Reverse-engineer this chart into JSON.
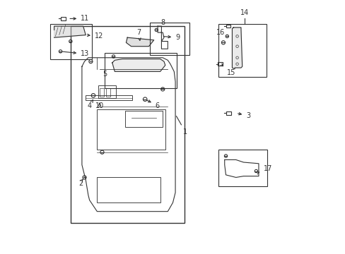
{
  "bg_color": "#ffffff",
  "line_color": "#333333",
  "figsize": [
    4.89,
    3.6
  ],
  "dpi": 100
}
